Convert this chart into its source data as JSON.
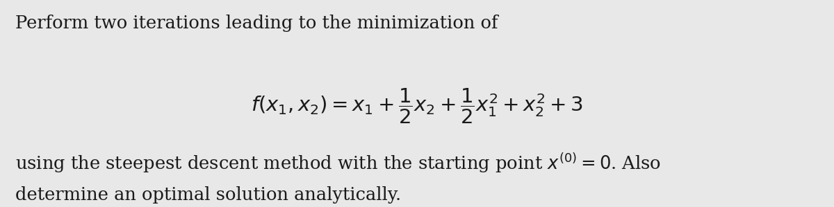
{
  "background_color": "#e8e8e8",
  "text_color": "#1a1a1a",
  "line1": "Perform two iterations leading to the minimization of",
  "formula": "$f(x_1, x_2) = x_1 + \\dfrac{1}{2}x_2 + \\dfrac{1}{2}x_1^2 + x_2^2 + 3$",
  "line3": "using the steepest descent method with the starting point $x^{(0)} = 0$. Also",
  "line4": "determine an optimal solution analytically.",
  "font_size_body": 18.5,
  "font_size_formula": 21,
  "fig_width": 12.0,
  "fig_height": 2.99,
  "dpi": 100
}
